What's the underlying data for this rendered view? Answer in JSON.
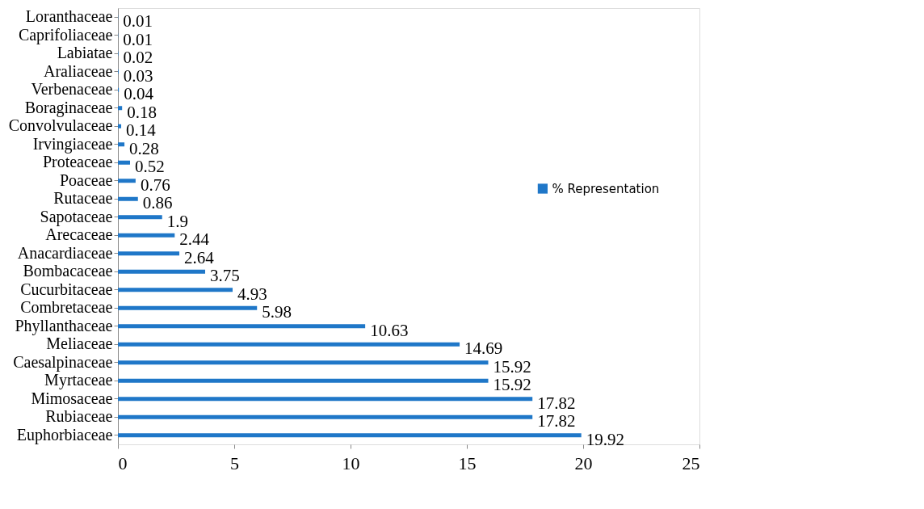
{
  "chart_data": {
    "type": "bar",
    "orientation": "horizontal",
    "categories": [
      "Loranthaceae",
      "Caprifoliaceae",
      "Labiatae",
      "Araliaceae",
      "Verbenaceae",
      "Boraginaceae",
      "Convolvulaceae",
      "Irvingiaceae",
      "Proteaceae",
      "Poaceae",
      "Rutaceae",
      "Sapotaceae",
      "Arecaceae",
      "Anacardiaceae",
      "Bombacaceae",
      "Cucurbitaceae",
      "Combretaceae",
      "Phyllanthaceae",
      "Meliaceae",
      "Caesalpinaceae",
      "Myrtaceae",
      "Mimosaceae",
      "Rubiaceae",
      "Euphorbiaceae"
    ],
    "series": [
      {
        "name": "% Representation",
        "color": "#1f77c8",
        "values": [
          0.01,
          0.01,
          0.02,
          0.03,
          0.04,
          0.18,
          0.14,
          0.28,
          0.52,
          0.76,
          0.86,
          1.9,
          2.44,
          2.64,
          3.75,
          4.93,
          5.98,
          10.63,
          14.69,
          15.92,
          15.92,
          17.82,
          17.82,
          19.92
        ]
      }
    ],
    "xlim": [
      0,
      25
    ],
    "xticks": [
      0,
      5,
      10,
      15,
      20,
      25
    ],
    "data_labels": true,
    "grid": false,
    "legend": "right"
  }
}
